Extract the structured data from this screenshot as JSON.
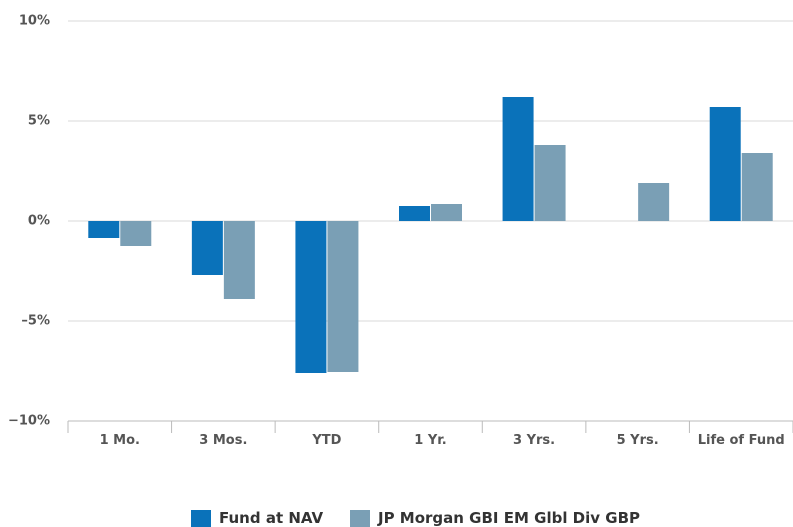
{
  "chart_data": {
    "type": "bar",
    "categories": [
      "1 Mo.",
      "3 Mos.",
      "YTD",
      "1 Yr.",
      "3 Yrs.",
      "5 Yrs.",
      "Life of Fund"
    ],
    "series": [
      {
        "name": "Fund at NAV",
        "color": "#0a72ba",
        "values": [
          -0.85,
          -2.7,
          -7.6,
          0.75,
          6.2,
          null,
          5.7
        ]
      },
      {
        "name": "JP Morgan GBI EM Glbl Div GBP",
        "color": "#7a9fb5",
        "values": [
          -1.25,
          -3.9,
          -7.55,
          0.85,
          3.8,
          1.9,
          3.4
        ]
      }
    ],
    "ylim": [
      -10,
      10
    ],
    "yticks": [
      {
        "value": -10,
        "label": "−10%"
      },
      {
        "value": -5,
        "label": "–5%"
      },
      {
        "value": 0,
        "label": "0%"
      },
      {
        "value": 5,
        "label": "5%"
      },
      {
        "value": 10,
        "label": "10%"
      }
    ],
    "grid": true,
    "legend": "bottom"
  }
}
